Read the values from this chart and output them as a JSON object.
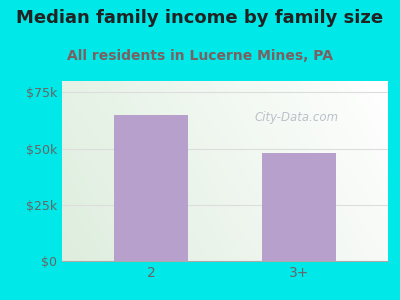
{
  "title": "Median family income by family size",
  "subtitle": "All residents in Lucerne Mines, PA",
  "categories": [
    "2",
    "3+"
  ],
  "values": [
    65000,
    48000
  ],
  "bar_color": "#b8a0cc",
  "ylim": [
    0,
    80000
  ],
  "yticks": [
    0,
    25000,
    50000,
    75000
  ],
  "ytick_labels": [
    "$0",
    "$25k",
    "$50k",
    "$75k"
  ],
  "title_fontsize": 13,
  "subtitle_fontsize": 10,
  "title_color": "#222222",
  "subtitle_color": "#7a6060",
  "outer_bg": "#00e8e8",
  "watermark": "City-Data.com",
  "tick_color": "#666666",
  "grid_color": "#dddddd"
}
